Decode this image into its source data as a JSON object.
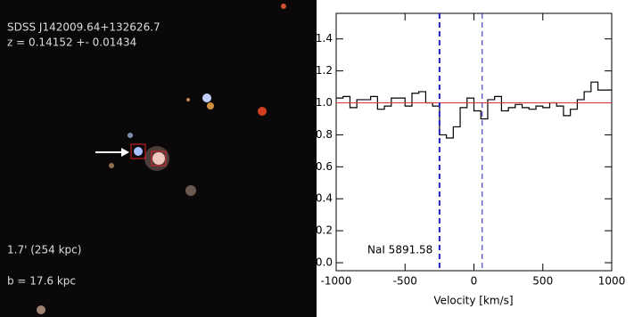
{
  "image": {
    "object": "SDSS J142009.64+132626.7",
    "redshift": "z = 0.14152 +- 0.01434",
    "scale": "1.7' (254 kpc)",
    "impact": "b = 17.6 kpc"
  },
  "chart_data": {
    "type": "step",
    "xlabel": "Velocity [km/s]",
    "annotation": "NaI 5891.58",
    "x": [
      -1000,
      -950,
      -900,
      -850,
      -800,
      -750,
      -700,
      -650,
      -600,
      -550,
      -500,
      -450,
      -400,
      -350,
      -300,
      -250,
      -200,
      -150,
      -100,
      -50,
      0,
      50,
      100,
      150,
      200,
      250,
      300,
      350,
      400,
      450,
      500,
      550,
      600,
      650,
      700,
      750,
      800,
      850,
      900,
      950
    ],
    "values": [
      1.03,
      1.04,
      0.97,
      1.02,
      1.02,
      1.04,
      0.96,
      0.98,
      1.03,
      1.03,
      0.98,
      1.06,
      1.07,
      1.0,
      0.98,
      0.8,
      0.78,
      0.85,
      0.97,
      1.03,
      0.95,
      0.9,
      1.02,
      1.04,
      0.95,
      0.97,
      0.99,
      0.97,
      0.96,
      0.98,
      0.97,
      1.0,
      0.98,
      0.92,
      0.96,
      1.02,
      1.07,
      1.13,
      1.08,
      1.08
    ],
    "color": "#000000",
    "hline": 1.0,
    "hline_color": "#e03030",
    "vlines": [
      -250,
      60
    ],
    "vline_color": "#2020c0",
    "xlim": [
      -1000,
      1000
    ],
    "ylim": [
      -0.05,
      1.56
    ],
    "xticks": [
      -1000,
      -500,
      0,
      500,
      1000
    ],
    "yticks": [
      {
        "value": 0,
        "label": "0.0"
      },
      {
        "value": 0.2,
        "label": "0.2"
      },
      {
        "value": 0.4,
        "label": "0.4"
      },
      {
        "value": 0.6,
        "label": "0.6"
      },
      {
        "value": 0.8,
        "label": "0.8"
      },
      {
        "value": 1.0,
        "label": "1.0"
      },
      {
        "value": 1.2,
        "label": "1.2"
      },
      {
        "value": 1.4,
        "label": "1.4"
      }
    ]
  }
}
